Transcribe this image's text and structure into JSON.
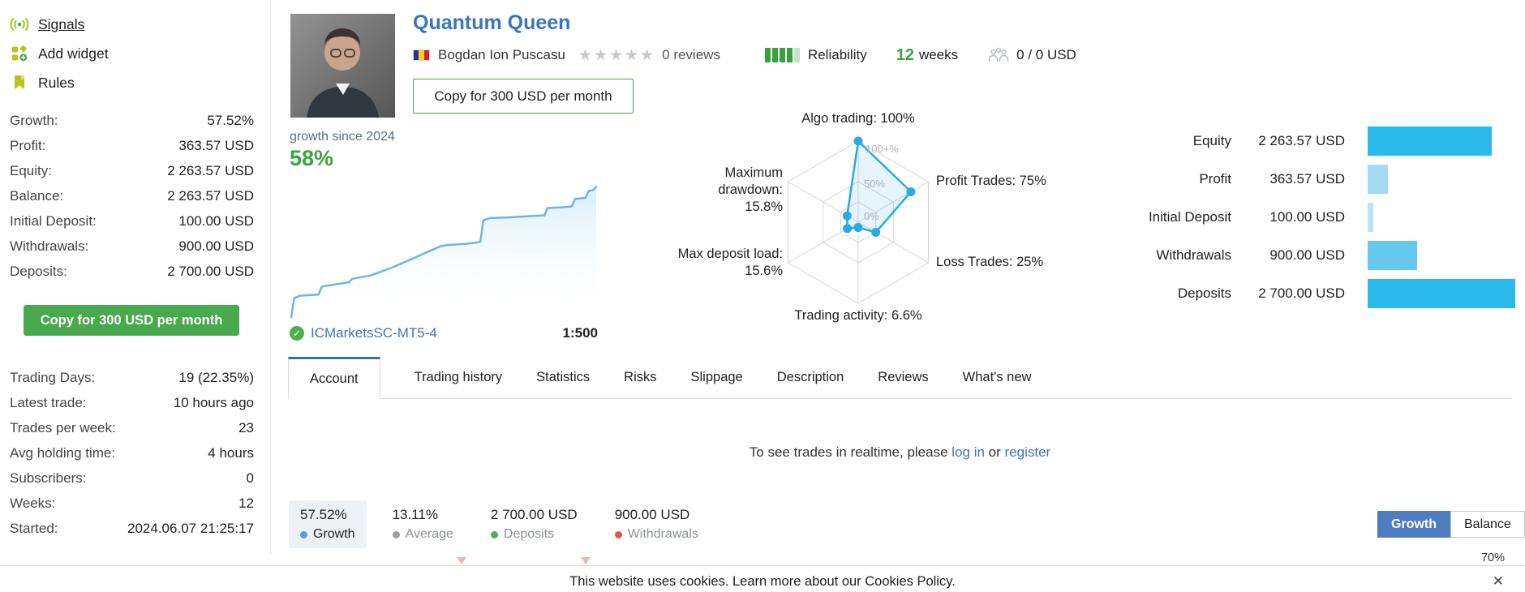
{
  "colors": {
    "brand_green": "#48a94e",
    "accent_green_text": "#3aa53a",
    "link_blue": "#3a77b8",
    "chart_line_blue": "#6db5e6",
    "radar_blue": "#29abe2",
    "bar_cyan": "#29b9ea",
    "toggle_active_blue": "#4d7cc0"
  },
  "sidebar": {
    "nav": [
      {
        "label": "Signals"
      },
      {
        "label": "Add widget"
      },
      {
        "label": "Rules"
      }
    ],
    "stats_primary": [
      {
        "label": "Growth:",
        "value": "57.52%"
      },
      {
        "label": "Profit:",
        "value": "363.57 USD"
      },
      {
        "label": "Equity:",
        "value": "2 263.57 USD"
      },
      {
        "label": "Balance:",
        "value": "2 263.57 USD"
      },
      {
        "label": "Initial Deposit:",
        "value": "100.00 USD"
      },
      {
        "label": "Withdrawals:",
        "value": "900.00 USD"
      },
      {
        "label": "Deposits:",
        "value": "2 700.00 USD"
      }
    ],
    "copy_button_label": "Copy for 300 USD per month",
    "stats_secondary": [
      {
        "label": "Trading Days:",
        "value": "19 (22.35%)"
      },
      {
        "label": "Latest trade:",
        "value": "10 hours ago"
      },
      {
        "label": "Trades per week:",
        "value": "23"
      },
      {
        "label": "Avg holding time:",
        "value": "4 hours"
      },
      {
        "label": "Subscribers:",
        "value": "0"
      },
      {
        "label": "Weeks:",
        "value": "12"
      },
      {
        "label": "Started:",
        "value": "2024.06.07 21:25:17"
      }
    ]
  },
  "header": {
    "title": "Quantum Queen",
    "author": "Bogdan Ion Puscasu",
    "stars_total": 5,
    "rating": 0,
    "reviews": "0 reviews",
    "reliability_label": "Reliability",
    "reliability_filled": 4,
    "reliability_total": 5,
    "weeks_value": "12",
    "weeks_label": "weeks",
    "funds": "0 / 0 USD",
    "copy_button_label": "Copy for 300 USD per month"
  },
  "growth": {
    "caption": "growth since 2024",
    "value": "58%"
  },
  "broker": {
    "name": "ICMarketsSC-MT5-4",
    "leverage": "1:500"
  },
  "account_summary": [
    {
      "label": "Equity",
      "value": "2 263.57 USD",
      "bar_color": "#29b9ea"
    },
    {
      "label": "Profit",
      "value": "363.57 USD",
      "bar_color": "#a5daf3"
    },
    {
      "label": "Initial Deposit",
      "value": "100.00 USD",
      "bar_color": "#bce4f7"
    },
    {
      "label": "Withdrawals",
      "value": "900.00 USD",
      "bar_color": "#67c8ee"
    },
    {
      "label": "Deposits",
      "value": "2 700.00 USD",
      "bar_color": "#29b9ea"
    }
  ],
  "tabs": {
    "items": [
      "Account",
      "Trading history",
      "Statistics",
      "Risks",
      "Slippage",
      "Description",
      "Reviews",
      "What's new"
    ],
    "active": "Account"
  },
  "login_notice": {
    "prefix": "To see trades in realtime, please",
    "login_link": "log in",
    "middle": "or",
    "register_link": "register"
  },
  "bottom_stats": [
    {
      "value": "57.52%",
      "label": "Growth",
      "dot": "#5b9bd5",
      "active": true
    },
    {
      "value": "13.11%",
      "label": "Average",
      "dot": "#9e9e9e",
      "active": false
    },
    {
      "value": "2 700.00 USD",
      "label": "Deposits",
      "dot": "#4caf50",
      "active": false
    },
    {
      "value": "900.00 USD",
      "label": "Withdrawals",
      "dot": "#e2574d",
      "active": false
    }
  ],
  "chart_toggle": {
    "options": [
      "Growth",
      "Balance"
    ],
    "active": "Growth"
  },
  "mini_chart": {
    "axis_label": "70%"
  },
  "cookie_bar": {
    "text": "This website uses cookies. Learn more about our Cookies Policy.",
    "close_label": "✕"
  },
  "chart_data": [
    {
      "type": "line",
      "title": "growth since 2024",
      "current_value_pct": 58,
      "ylabel": "growth %",
      "ylim": [
        0,
        62
      ],
      "x_is_percent_of_period": true,
      "points": [
        [
          0,
          0
        ],
        [
          1,
          8.5
        ],
        [
          3,
          9.5
        ],
        [
          9,
          10
        ],
        [
          10,
          13.5
        ],
        [
          12,
          14
        ],
        [
          19,
          15.5
        ],
        [
          20,
          17
        ],
        [
          26,
          18.5
        ],
        [
          28,
          19.5
        ],
        [
          33,
          22
        ],
        [
          39,
          25.5
        ],
        [
          44,
          28.5
        ],
        [
          49,
          31.5
        ],
        [
          51,
          32
        ],
        [
          57,
          32.5
        ],
        [
          60,
          33
        ],
        [
          62,
          33.5
        ],
        [
          63,
          43
        ],
        [
          65,
          44
        ],
        [
          71,
          44.3
        ],
        [
          77,
          44.8
        ],
        [
          83,
          45.2
        ],
        [
          84,
          48.5
        ],
        [
          89,
          48.8
        ],
        [
          92,
          49.2
        ],
        [
          93,
          52.5
        ],
        [
          95,
          52.8
        ],
        [
          96.5,
          53
        ],
        [
          97.5,
          56
        ],
        [
          99,
          56.5
        ],
        [
          100,
          58
        ]
      ]
    },
    {
      "type": "radar",
      "rings": [
        "0%",
        "50%",
        "100+%"
      ],
      "max": 100,
      "axes": [
        {
          "name": "Algo trading",
          "value": 100,
          "display": "100%"
        },
        {
          "name": "Profit Trades",
          "value": 75,
          "display": "75%"
        },
        {
          "name": "Loss Trades",
          "value": 25,
          "display": "25%"
        },
        {
          "name": "Trading activity",
          "value": 6.6,
          "display": "6.6%"
        },
        {
          "name": "Max deposit load",
          "value": 15.6,
          "display": "15.6%"
        },
        {
          "name": "Maximum drawdown",
          "value": 15.8,
          "display": "15.8%"
        }
      ]
    },
    {
      "type": "bar",
      "orientation": "horizontal",
      "categories": [
        "Equity",
        "Profit",
        "Initial Deposit",
        "Withdrawals",
        "Deposits"
      ],
      "values": [
        2263.57,
        363.57,
        100.0,
        900.0,
        2700.0
      ],
      "unit": "USD",
      "xlim": [
        0,
        2700
      ]
    }
  ]
}
